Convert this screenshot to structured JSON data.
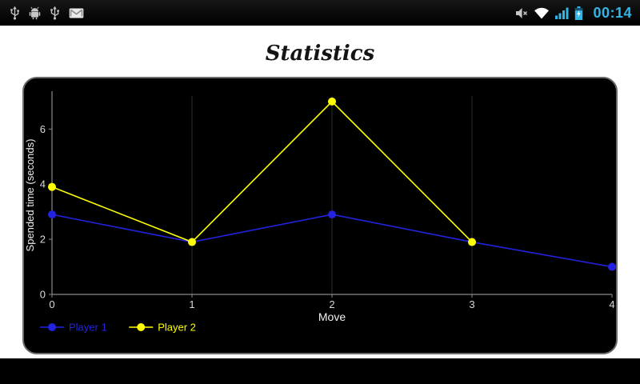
{
  "status_bar": {
    "time": "00:14",
    "accent_color": "#33b5e5",
    "background": "#000000",
    "left_icons": [
      "usb-connected-icon",
      "android-debug-icon",
      "usb-connected-icon",
      "gmail-icon"
    ],
    "right_icons": [
      "silent-mode-icon",
      "wifi-icon",
      "signal-strength-icon",
      "battery-charging-icon"
    ]
  },
  "page": {
    "title": "Statistics",
    "background": "#ffffff"
  },
  "chart_data": {
    "type": "line",
    "title": "Statistics",
    "xlabel": "Move",
    "ylabel": "Spended time (seconds)",
    "xlim": [
      0,
      4
    ],
    "ylim": [
      0,
      7.2
    ],
    "x_ticks": [
      0,
      1,
      2,
      3,
      4
    ],
    "y_ticks": [
      0,
      2,
      4,
      6
    ],
    "grid": "vertical",
    "background": "#000000",
    "axis_color": "#8a8a8a",
    "grid_color": "#2e2e2e",
    "label_color": "#d9d9d9",
    "legend_position": "bottom-left",
    "series": [
      {
        "name": "Player 1",
        "color": "#2222e0",
        "x": [
          0,
          1,
          2,
          3,
          4
        ],
        "values": [
          2.9,
          1.9,
          2.9,
          1.9,
          1.0
        ]
      },
      {
        "name": "Player 2",
        "color": "#ffff00",
        "x": [
          0,
          1,
          2,
          3
        ],
        "values": [
          3.9,
          1.9,
          7.0,
          1.9
        ]
      }
    ]
  }
}
